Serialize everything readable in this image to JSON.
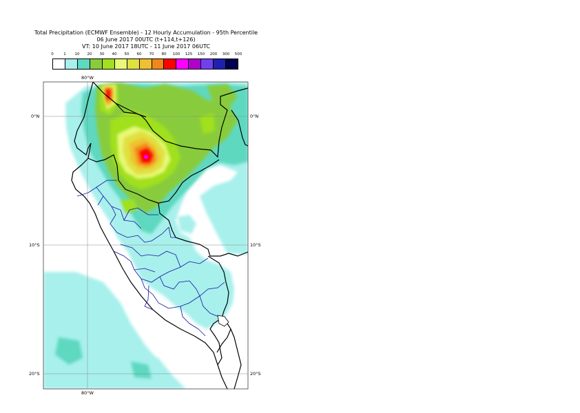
{
  "title": {
    "line1": "Total Precipitation (ECMWF Ensemble) - 12 Hourly Accumulation - 95th Percentile",
    "line2": "06 June 2017 00UTC (t+114,t+126)",
    "line3": "VT: 10 June 2017 18UTC - 11 June 2017 06UTC"
  },
  "legend": {
    "ticks": [
      "0",
      "1",
      "10",
      "20",
      "30",
      "40",
      "50",
      "60",
      "70",
      "80",
      "100",
      "125",
      "150",
      "200",
      "300",
      "500"
    ],
    "colors": [
      "#ffffff",
      "#a8f0ec",
      "#5ed8c0",
      "#88cc3c",
      "#a0e01c",
      "#e8f878",
      "#e0e040",
      "#f0c030",
      "#f08818",
      "#ff0000",
      "#ff00ff",
      "#b000d0",
      "#7040f0",
      "#2020b0",
      "#000050"
    ]
  },
  "map": {
    "lon_labels_top": [
      "80°W"
    ],
    "lon_labels_bottom": [
      "80°W"
    ],
    "lat_labels_left": [
      "0°N",
      "10°S",
      "20°S"
    ],
    "lat_labels_right": [
      "0°N",
      "10°S",
      "20°S"
    ]
  }
}
